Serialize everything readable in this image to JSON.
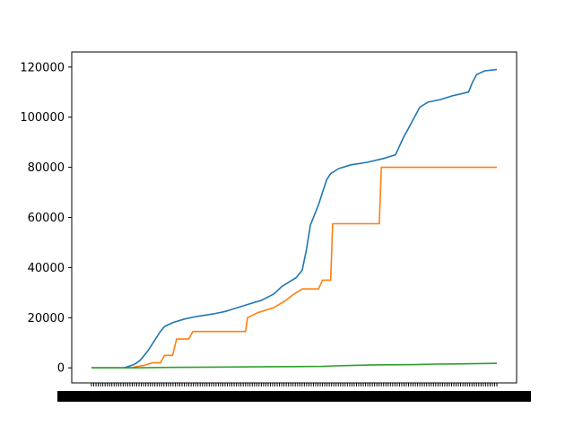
{
  "chart_data": {
    "type": "line",
    "title": "",
    "xlabel": "",
    "ylabel": "",
    "ylim": [
      -6000,
      126000
    ],
    "yticks": [
      0,
      20000,
      40000,
      60000,
      80000,
      100000,
      120000
    ],
    "ytick_labels": [
      "0",
      "20000",
      "40000",
      "60000",
      "80000",
      "100000",
      "120000"
    ],
    "x_range": [
      0,
      1
    ],
    "x_tick_count": 180,
    "x_tick_labels_note": "",
    "grid": false,
    "legend": "none",
    "series": [
      {
        "color": "#1f77b4",
        "points": [
          [
            0.0,
            0
          ],
          [
            0.08,
            0
          ],
          [
            0.09,
            500
          ],
          [
            0.1,
            1000
          ],
          [
            0.11,
            1800
          ],
          [
            0.12,
            3000
          ],
          [
            0.13,
            5000
          ],
          [
            0.14,
            7000
          ],
          [
            0.15,
            9500
          ],
          [
            0.16,
            12000
          ],
          [
            0.17,
            14500
          ],
          [
            0.18,
            16500
          ],
          [
            0.2,
            18000
          ],
          [
            0.23,
            19500
          ],
          [
            0.26,
            20500
          ],
          [
            0.3,
            21500
          ],
          [
            0.33,
            22500
          ],
          [
            0.36,
            24000
          ],
          [
            0.39,
            25500
          ],
          [
            0.42,
            27000
          ],
          [
            0.45,
            29500
          ],
          [
            0.47,
            32500
          ],
          [
            0.49,
            34500
          ],
          [
            0.505,
            36000
          ],
          [
            0.52,
            39000
          ],
          [
            0.53,
            47000
          ],
          [
            0.54,
            57000
          ],
          [
            0.55,
            61000
          ],
          [
            0.56,
            65000
          ],
          [
            0.57,
            70000
          ],
          [
            0.58,
            75000
          ],
          [
            0.59,
            77500
          ],
          [
            0.61,
            79500
          ],
          [
            0.64,
            81000
          ],
          [
            0.68,
            82000
          ],
          [
            0.72,
            83500
          ],
          [
            0.75,
            85000
          ],
          [
            0.77,
            92000
          ],
          [
            0.78,
            95000
          ],
          [
            0.79,
            98000
          ],
          [
            0.8,
            101000
          ],
          [
            0.81,
            104000
          ],
          [
            0.83,
            106000
          ],
          [
            0.86,
            107000
          ],
          [
            0.89,
            108500
          ],
          [
            0.93,
            110000
          ],
          [
            0.94,
            114000
          ],
          [
            0.95,
            117000
          ],
          [
            0.97,
            118500
          ],
          [
            1.0,
            119000
          ]
        ]
      },
      {
        "color": "#ff7f0e",
        "points": [
          [
            0.0,
            0
          ],
          [
            0.1,
            0
          ],
          [
            0.11,
            500
          ],
          [
            0.13,
            1000
          ],
          [
            0.15,
            2000
          ],
          [
            0.17,
            2000
          ],
          [
            0.18,
            5000
          ],
          [
            0.2,
            5000
          ],
          [
            0.21,
            11500
          ],
          [
            0.24,
            11500
          ],
          [
            0.25,
            14500
          ],
          [
            0.38,
            14500
          ],
          [
            0.385,
            20000
          ],
          [
            0.41,
            22000
          ],
          [
            0.45,
            24000
          ],
          [
            0.48,
            27000
          ],
          [
            0.5,
            29500
          ],
          [
            0.52,
            31500
          ],
          [
            0.56,
            31500
          ],
          [
            0.57,
            35000
          ],
          [
            0.59,
            35000
          ],
          [
            0.595,
            57500
          ],
          [
            0.71,
            57500
          ],
          [
            0.715,
            80000
          ],
          [
            1.0,
            80000
          ]
        ]
      },
      {
        "color": "#2ca02c",
        "points": [
          [
            0.0,
            0
          ],
          [
            0.1,
            0
          ],
          [
            0.2,
            200
          ],
          [
            0.3,
            300
          ],
          [
            0.4,
            400
          ],
          [
            0.5,
            500
          ],
          [
            0.57,
            600
          ],
          [
            0.6,
            800
          ],
          [
            0.65,
            1000
          ],
          [
            0.7,
            1200
          ],
          [
            0.8,
            1300
          ],
          [
            0.85,
            1500
          ],
          [
            0.9,
            1600
          ],
          [
            1.0,
            1800
          ]
        ]
      }
    ]
  }
}
